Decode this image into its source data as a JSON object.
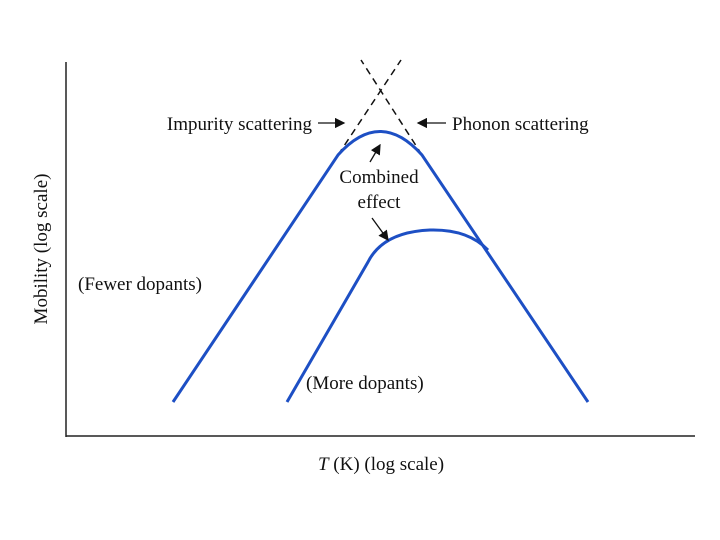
{
  "y_axis_label": "Mobility (log scale)",
  "x_axis_label": {
    "symbol": "T",
    "text": "(K) (log scale)"
  },
  "labels": {
    "impurity": "Impurity scattering",
    "phonon": "Phonon scattering",
    "combined": [
      "Combined",
      "effect"
    ],
    "fewer": "(Fewer dopants)",
    "more": "(More dopants)"
  }
}
